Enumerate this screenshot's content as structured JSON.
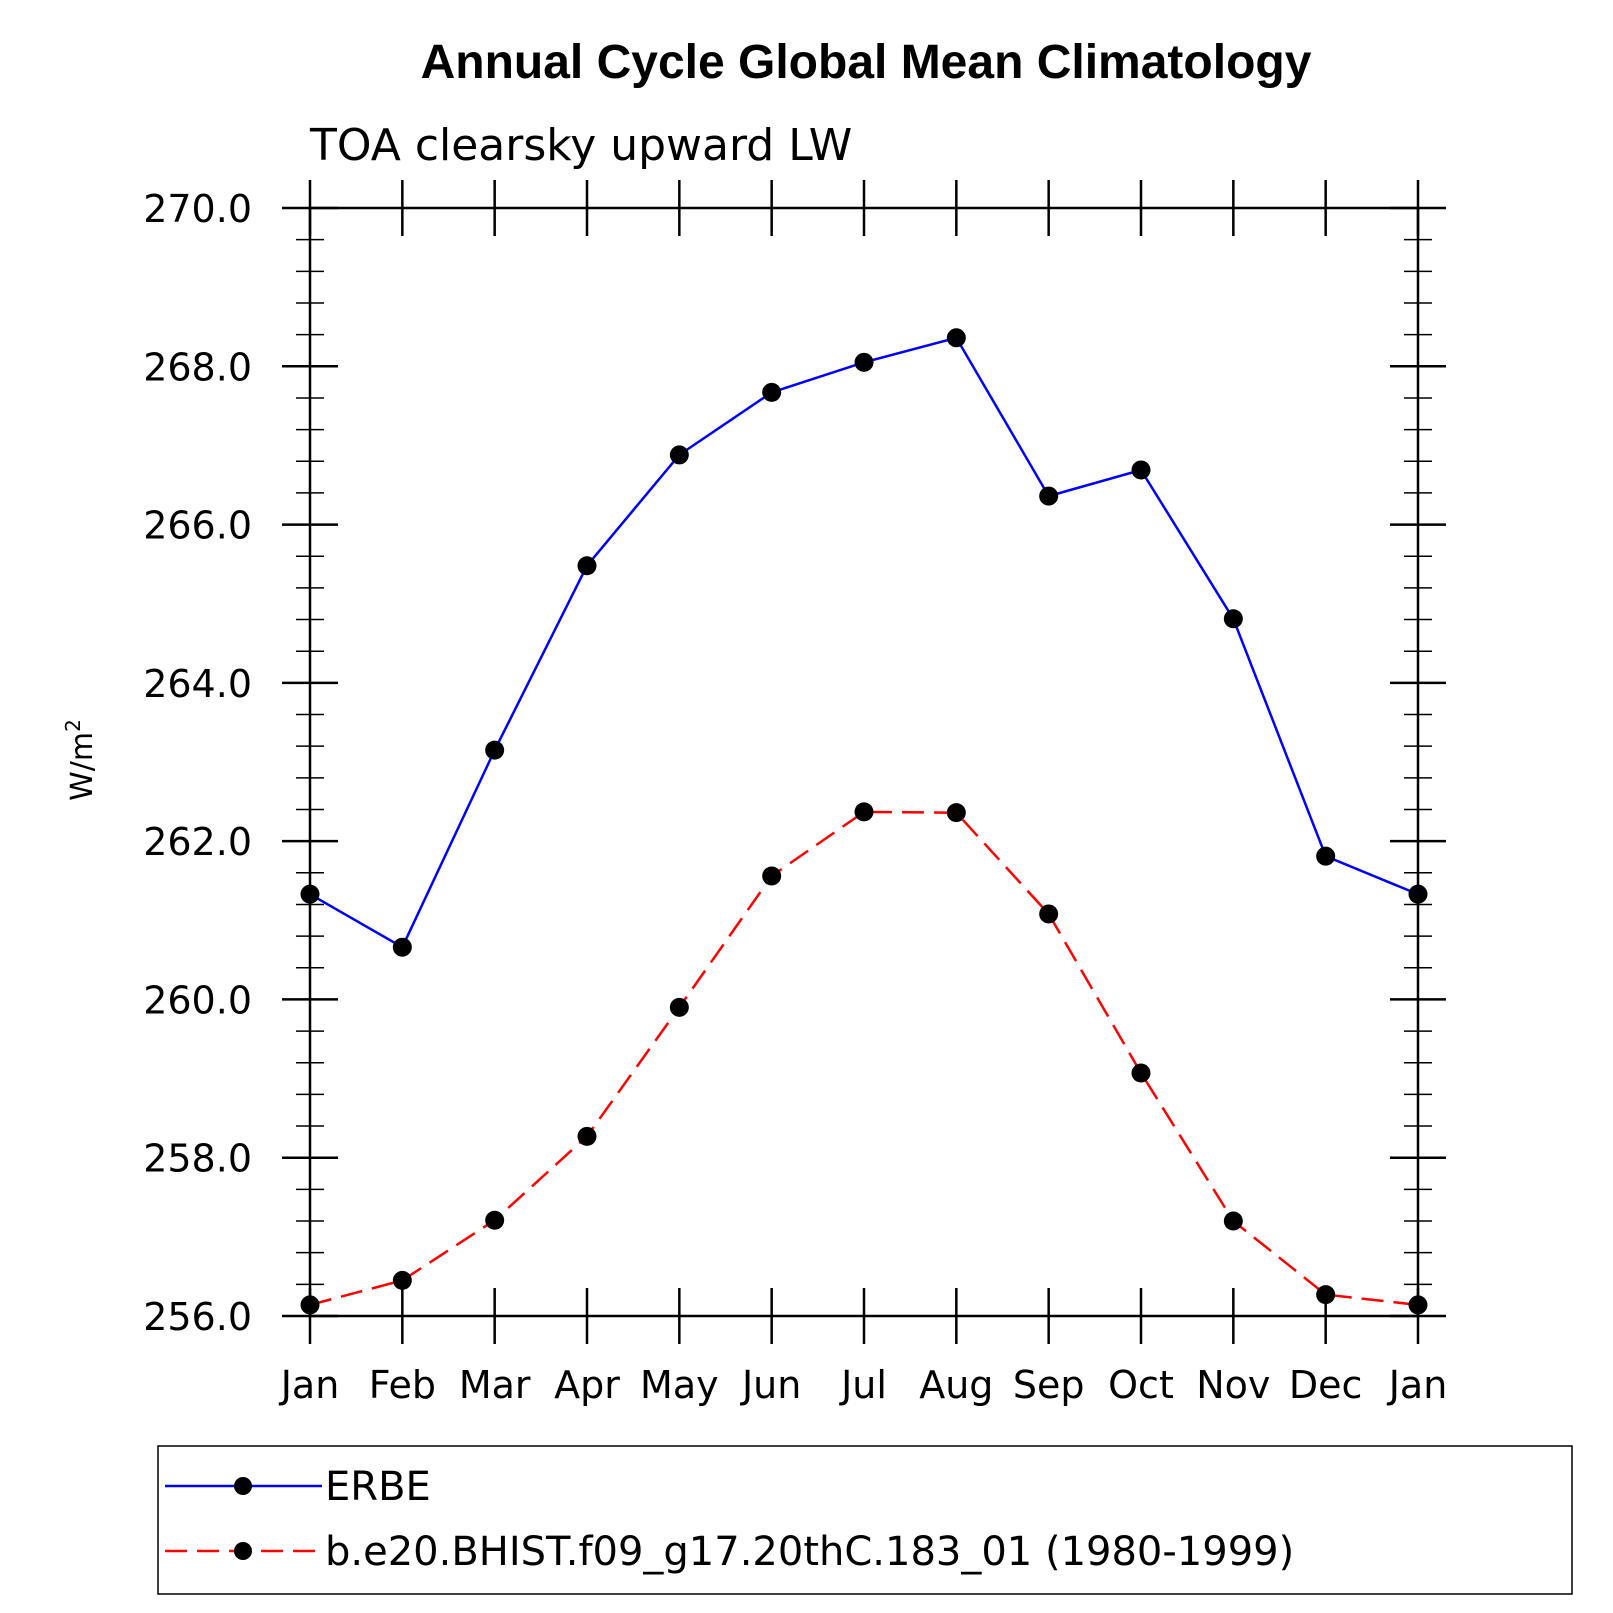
{
  "chart_data": {
    "type": "line",
    "title": "Annual Cycle Global Mean Climatology",
    "subtitle": "TOA clearsky upward LW",
    "xlabel": "",
    "ylabel": "W/m",
    "ylabel_superscript": "2",
    "categories": [
      "Jan",
      "Feb",
      "Mar",
      "Apr",
      "May",
      "Jun",
      "Jul",
      "Aug",
      "Sep",
      "Oct",
      "Nov",
      "Dec",
      "Jan"
    ],
    "ylim": [
      256.0,
      270.0
    ],
    "yticks": [
      "256.0",
      "258.0",
      "260.0",
      "262.0",
      "264.0",
      "266.0",
      "268.0",
      "270.0"
    ],
    "series": [
      {
        "name": "ERBE",
        "color": "#0000ff",
        "dash": "solid",
        "marker_color": "#000000",
        "values": [
          261.33,
          260.66,
          263.15,
          265.48,
          266.88,
          267.67,
          268.05,
          268.36,
          266.36,
          266.69,
          264.81,
          261.81,
          261.33
        ]
      },
      {
        "name": "b.e20.BHIST.f09_g17.20thC.183_01 (1980-1999)",
        "color": "#ff0000",
        "dash": "dashed",
        "marker_color": "#000000",
        "values": [
          256.14,
          256.45,
          257.21,
          258.27,
          259.9,
          261.56,
          262.37,
          262.36,
          261.08,
          259.07,
          257.2,
          256.27,
          256.14
        ]
      }
    ],
    "grid": false,
    "legend_position": "bottom"
  }
}
